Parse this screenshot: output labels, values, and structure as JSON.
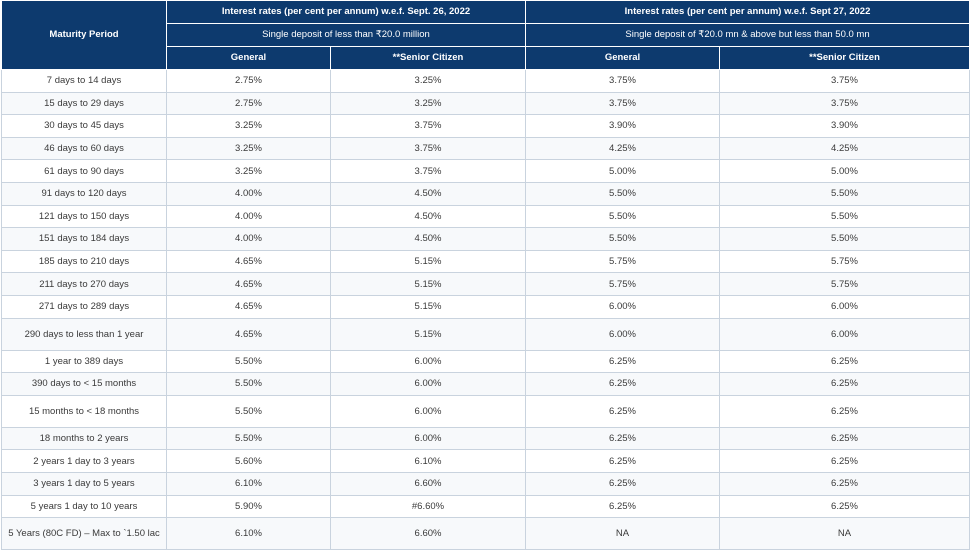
{
  "table": {
    "maturity_header": "Maturity Period",
    "group1": {
      "title": "Interest rates (per cent per annum) w.e.f. Sept. 26, 2022",
      "subtitle": "Single deposit of less than ₹20.0 million",
      "col_general": "General",
      "col_senior": "**Senior Citizen"
    },
    "group2": {
      "title": "Interest rates (per cent per annum) w.e.f. Sept 27, 2022",
      "subtitle": "Single deposit of ₹20.0 mn & above but less than 50.0 mn",
      "col_general": "General",
      "col_senior": "**Senior Citizen"
    },
    "rows": [
      {
        "period": "7 days to 14 days",
        "g1_general": "2.75%",
        "g1_senior": "3.25%",
        "g2_general": "3.75%",
        "g2_senior": "3.75%"
      },
      {
        "period": "15 days to 29 days",
        "g1_general": "2.75%",
        "g1_senior": "3.25%",
        "g2_general": "3.75%",
        "g2_senior": "3.75%"
      },
      {
        "period": "30 days to 45 days",
        "g1_general": "3.25%",
        "g1_senior": "3.75%",
        "g2_general": "3.90%",
        "g2_senior": "3.90%"
      },
      {
        "period": "46 days to 60 days",
        "g1_general": "3.25%",
        "g1_senior": "3.75%",
        "g2_general": "4.25%",
        "g2_senior": "4.25%"
      },
      {
        "period": "61 days to 90 days",
        "g1_general": "3.25%",
        "g1_senior": "3.75%",
        "g2_general": "5.00%",
        "g2_senior": "5.00%"
      },
      {
        "period": "91 days to 120 days",
        "g1_general": "4.00%",
        "g1_senior": "4.50%",
        "g2_general": "5.50%",
        "g2_senior": "5.50%"
      },
      {
        "period": "121 days to 150 days",
        "g1_general": "4.00%",
        "g1_senior": "4.50%",
        "g2_general": "5.50%",
        "g2_senior": "5.50%"
      },
      {
        "period": "151 days to 184 days",
        "g1_general": "4.00%",
        "g1_senior": "4.50%",
        "g2_general": "5.50%",
        "g2_senior": "5.50%"
      },
      {
        "period": "185 days to 210 days",
        "g1_general": "4.65%",
        "g1_senior": "5.15%",
        "g2_general": "5.75%",
        "g2_senior": "5.75%"
      },
      {
        "period": "211 days to 270 days",
        "g1_general": "4.65%",
        "g1_senior": "5.15%",
        "g2_general": "5.75%",
        "g2_senior": "5.75%"
      },
      {
        "period": "271 days to 289 days",
        "g1_general": "4.65%",
        "g1_senior": "5.15%",
        "g2_general": "6.00%",
        "g2_senior": "6.00%"
      },
      {
        "period": "290 days to less than 1 year",
        "g1_general": "4.65%",
        "g1_senior": "5.15%",
        "g2_general": "6.00%",
        "g2_senior": "6.00%",
        "tall": true
      },
      {
        "period": "1 year to 389 days",
        "g1_general": "5.50%",
        "g1_senior": "6.00%",
        "g2_general": "6.25%",
        "g2_senior": "6.25%"
      },
      {
        "period": "390 days to < 15 months",
        "g1_general": "5.50%",
        "g1_senior": "6.00%",
        "g2_general": "6.25%",
        "g2_senior": "6.25%"
      },
      {
        "period": "15 months to < 18 months",
        "g1_general": "5.50%",
        "g1_senior": "6.00%",
        "g2_general": "6.25%",
        "g2_senior": "6.25%",
        "tall": true
      },
      {
        "period": "18 months to 2 years",
        "g1_general": "5.50%",
        "g1_senior": "6.00%",
        "g2_general": "6.25%",
        "g2_senior": "6.25%"
      },
      {
        "period": "2 years 1 day to 3 years",
        "g1_general": "5.60%",
        "g1_senior": "6.10%",
        "g2_general": "6.25%",
        "g2_senior": "6.25%"
      },
      {
        "period": "3 years 1 day to 5 years",
        "g1_general": "6.10%",
        "g1_senior": "6.60%",
        "g2_general": "6.25%",
        "g2_senior": "6.25%"
      },
      {
        "period": "5 years 1 day to 10 years",
        "g1_general": "5.90%",
        "g1_senior": "#6.60%",
        "g2_general": "6.25%",
        "g2_senior": "6.25%"
      },
      {
        "period": "5 Years (80C FD) – Max to `1.50 lac",
        "g1_general": "6.10%",
        "g1_senior": "6.60%",
        "g2_general": "NA",
        "g2_senior": "NA",
        "tall": true
      }
    ]
  },
  "colors": {
    "header_bg": "#0d3a6e",
    "header_text": "#ffffff",
    "cell_border": "#c9d3de",
    "cell_text": "#3a3a3a"
  }
}
